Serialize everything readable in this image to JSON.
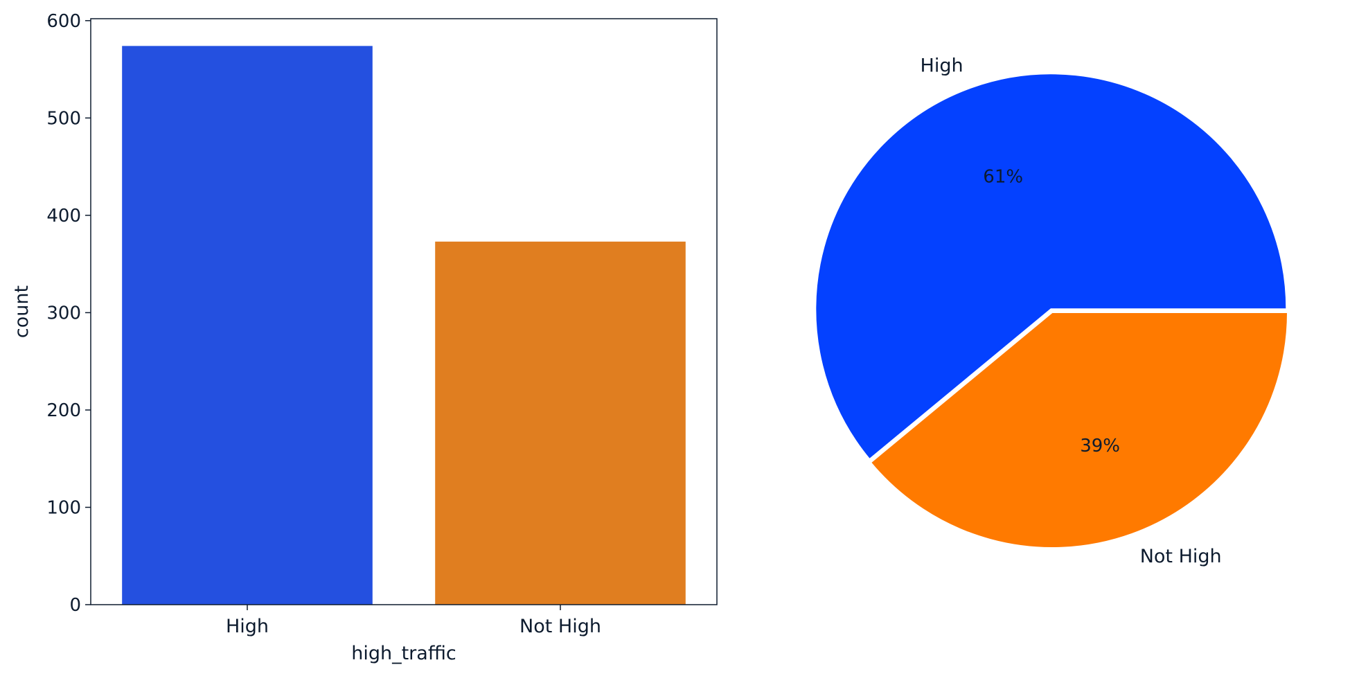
{
  "chart_data": [
    {
      "type": "bar",
      "categories": [
        "High",
        "Not High"
      ],
      "values": [
        574,
        373
      ],
      "colors": [
        "#2450e0",
        "#e07e20"
      ],
      "xlabel": "high_traffic",
      "ylabel": "count",
      "ylim": [
        0,
        602
      ],
      "yticks": [
        0,
        100,
        200,
        300,
        400,
        500,
        600
      ],
      "grid": false
    },
    {
      "type": "pie",
      "labels": [
        "High",
        "Not High"
      ],
      "values": [
        61,
        39
      ],
      "pct_labels": [
        "61%",
        "39%"
      ],
      "colors": [
        "#0441ff",
        "#ff7a00"
      ],
      "explode": [
        "High"
      ]
    }
  ]
}
